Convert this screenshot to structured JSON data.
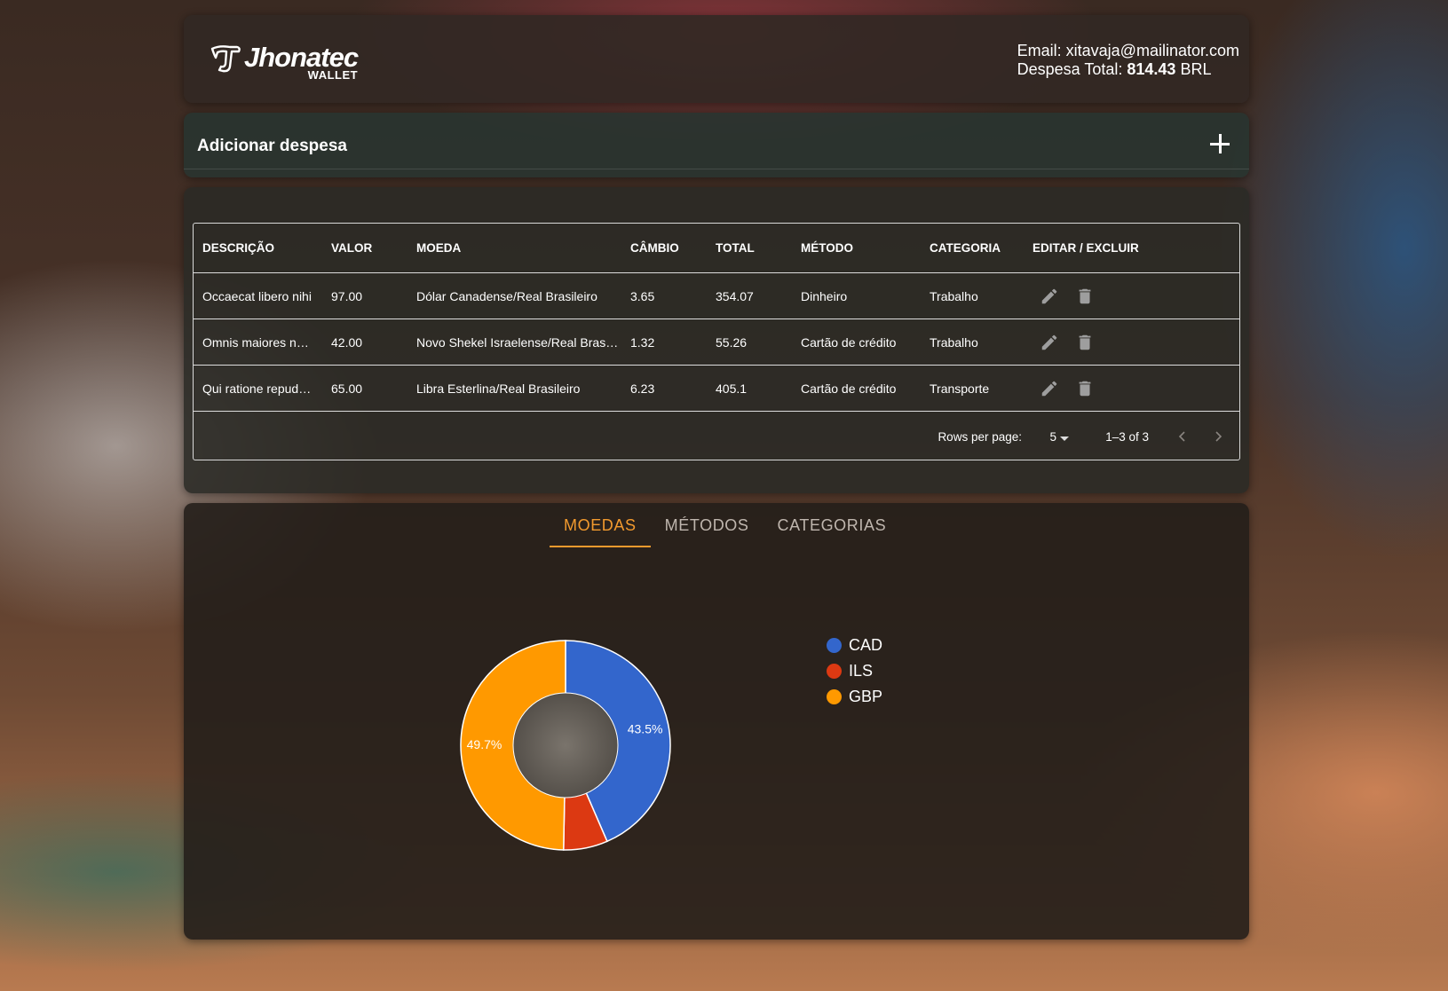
{
  "header": {
    "logo_main": "Jhonatec",
    "logo_sub": "WALLET",
    "email_label": "Email:",
    "email": "xitavaja@mailinator.com",
    "total_label": "Despesa Total:",
    "total_value": "814.43",
    "currency": "BRL"
  },
  "add_expense": {
    "title": "Adicionar despesa"
  },
  "table": {
    "columns": [
      "DESCRIÇÃO",
      "VALOR",
      "MOEDA",
      "CÂMBIO",
      "TOTAL",
      "MÉTODO",
      "CATEGORIA",
      "EDITAR / EXCLUIR"
    ],
    "rows": [
      {
        "descricao": "Occaecat libero nihi",
        "valor": "97.00",
        "moeda": "Dólar Canadense/Real Brasileiro",
        "cambio": "3.65",
        "total": "354.07",
        "metodo": "Dinheiro",
        "categoria": "Trabalho"
      },
      {
        "descricao": "Omnis maiores nu…",
        "valor": "42.00",
        "moeda": "Novo Shekel Israelense/Real Brasil…",
        "cambio": "1.32",
        "total": "55.26",
        "metodo": "Cartão de crédito",
        "categoria": "Trabalho"
      },
      {
        "descricao": "Qui ratione repudian",
        "valor": "65.00",
        "moeda": "Libra Esterlina/Real Brasileiro",
        "cambio": "6.23",
        "total": "405.1",
        "metodo": "Cartão de crédito",
        "categoria": "Transporte"
      }
    ],
    "pagination": {
      "rows_per_page_label": "Rows per page:",
      "rows_per_page": "5",
      "range": "1–3 of 3"
    }
  },
  "tabs": [
    {
      "label": "MOEDAS",
      "active": true
    },
    {
      "label": "MÉTODOS",
      "active": false
    },
    {
      "label": "CATEGORIAS",
      "active": false
    }
  ],
  "chart_data": {
    "type": "pie",
    "categories": [
      "CAD",
      "ILS",
      "GBP"
    ],
    "values": [
      43.5,
      6.8,
      49.7
    ],
    "data_labels": [
      "43.5%",
      "",
      "49.7%"
    ],
    "colors": [
      "#3366cc",
      "#dc3912",
      "#ff9900"
    ],
    "donut": true,
    "legend": "right"
  },
  "colors": {
    "accent": "#f29a2e",
    "card_bg": "#2a2a26",
    "text": "#ffffff"
  }
}
